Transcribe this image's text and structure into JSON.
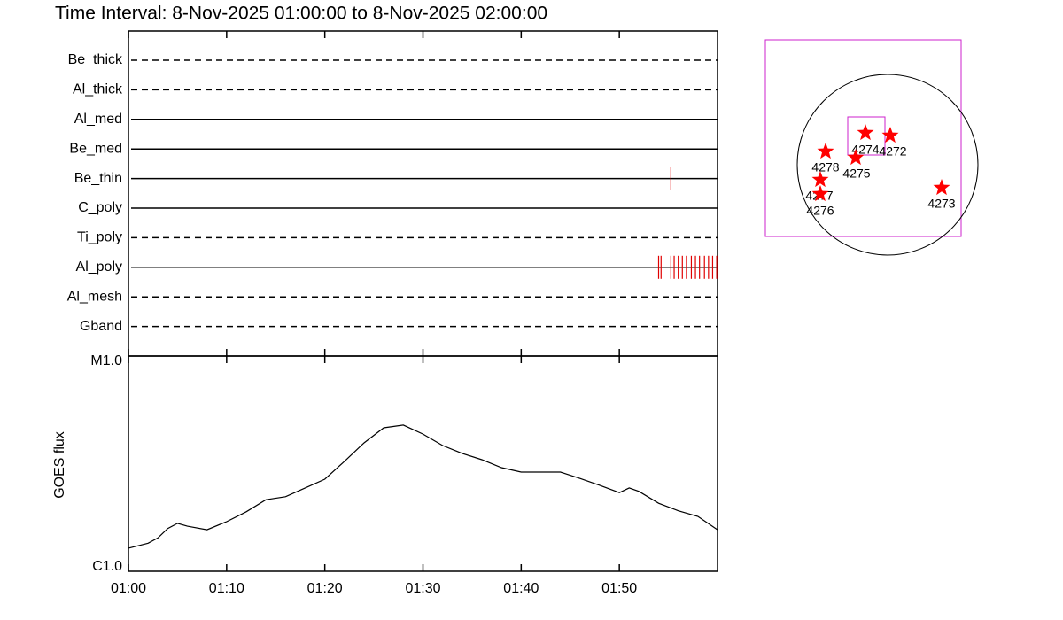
{
  "title": "Time Interval:  8-Nov-2025 01:00:00 to  8-Nov-2025 02:00:00",
  "chart_data": [
    {
      "type": "timeline",
      "xlim": [
        "01:00",
        "02:00"
      ],
      "xticks": [
        "01:00",
        "01:10",
        "01:20",
        "01:30",
        "01:40",
        "01:50"
      ],
      "event_color": "#e00000",
      "rows": [
        {
          "name": "Be_thick",
          "style": "dashed"
        },
        {
          "name": "Al_thick",
          "style": "dashed"
        },
        {
          "name": "Al_med",
          "style": "solid"
        },
        {
          "name": "Be_med",
          "style": "solid"
        },
        {
          "name": "Be_thin",
          "style": "solid",
          "events": [
            "01:55:15"
          ]
        },
        {
          "name": "C_poly",
          "style": "solid"
        },
        {
          "name": "Ti_poly",
          "style": "dashed"
        },
        {
          "name": "Al_poly",
          "style": "solid",
          "events": [
            "01:54:00",
            "01:54:15",
            "01:55:15",
            "01:55:35",
            "01:56:00",
            "01:56:25",
            "01:56:50",
            "01:57:20",
            "01:57:45",
            "01:58:10",
            "01:58:40",
            "01:59:05",
            "01:59:30",
            "01:59:55"
          ]
        },
        {
          "name": "Al_mesh",
          "style": "dashed"
        },
        {
          "name": "Gband",
          "style": "dashed"
        }
      ]
    },
    {
      "type": "line",
      "ylabel": "GOES flux",
      "log_scale": true,
      "color": "#000000",
      "xlim": [
        "01:00",
        "02:00"
      ],
      "xticks": [
        "01:00",
        "01:10",
        "01:20",
        "01:30",
        "01:40",
        "01:50"
      ],
      "ylim": [
        1e-06,
        1e-05
      ],
      "yticks": [
        {
          "value": 1e-06,
          "label": "C1.0"
        },
        {
          "value": 1e-05,
          "label": "M1.0"
        }
      ],
      "x": [
        "01:00",
        "01:02",
        "01:03",
        "01:04",
        "01:05",
        "01:06",
        "01:08",
        "01:10",
        "01:12",
        "01:14",
        "01:16",
        "01:18",
        "01:20",
        "01:22",
        "01:24",
        "01:26",
        "01:28",
        "01:30",
        "01:32",
        "01:34",
        "01:36",
        "01:38",
        "01:40",
        "01:42",
        "01:44",
        "01:46",
        "01:48",
        "01:50",
        "01:51",
        "01:52",
        "01:54",
        "01:56",
        "01:58",
        "02:00"
      ],
      "values": [
        1.28e-06,
        1.35e-06,
        1.43e-06,
        1.58e-06,
        1.67e-06,
        1.62e-06,
        1.56e-06,
        1.7e-06,
        1.89e-06,
        2.15e-06,
        2.22e-06,
        2.44e-06,
        2.68e-06,
        3.24e-06,
        3.95e-06,
        4.64e-06,
        4.78e-06,
        4.34e-06,
        3.84e-06,
        3.53e-06,
        3.3e-06,
        3.03e-06,
        2.89e-06,
        2.89e-06,
        2.89e-06,
        2.7e-06,
        2.51e-06,
        2.32e-06,
        2.44e-06,
        2.35e-06,
        2.07e-06,
        1.91e-06,
        1.8e-06,
        1.56e-06
      ]
    },
    {
      "type": "map",
      "star_color": "#ff0000",
      "box_color": "#cc22cc",
      "regions": [
        "4274",
        "4272",
        "4278",
        "4275",
        "4277",
        "4276",
        "4273"
      ]
    }
  ]
}
